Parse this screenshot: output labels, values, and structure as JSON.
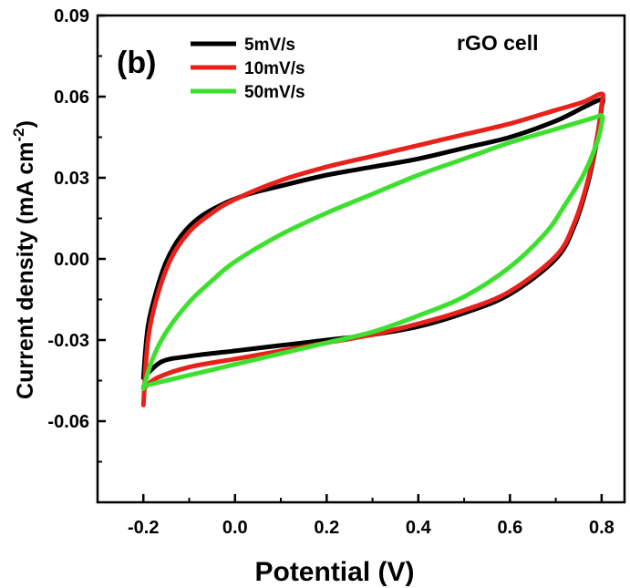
{
  "chart_data": {
    "type": "line",
    "title": "",
    "panel_label": "(b)",
    "annotation": "rGO cell",
    "xlabel": "Potential (V)",
    "ylabel_main": "Current density (mA cm",
    "ylabel_sup": "-2",
    "ylabel_close": ")",
    "xlim": [
      -0.3,
      0.85
    ],
    "ylim": [
      -0.09,
      0.09
    ],
    "x_ticks": [
      -0.2,
      0.0,
      0.2,
      0.4,
      0.6,
      0.8
    ],
    "x_tick_labels": [
      "-0.2",
      "0.0",
      "0.2",
      "0.4",
      "0.6",
      "0.8"
    ],
    "y_ticks": [
      -0.06,
      -0.03,
      0.0,
      0.03,
      0.06,
      0.09
    ],
    "y_tick_labels": [
      "-0.06",
      "-0.03",
      "0.00",
      "0.03",
      "0.06",
      "0.09"
    ],
    "grid": false,
    "legend_position": "top-left",
    "series": [
      {
        "name": "5mV/s",
        "color": "#000000",
        "x": [
          -0.2,
          -0.19,
          -0.17,
          -0.15,
          -0.12,
          -0.08,
          -0.03,
          0.03,
          0.1,
          0.2,
          0.3,
          0.4,
          0.5,
          0.6,
          0.7,
          0.76,
          0.8,
          0.8,
          0.79,
          0.77,
          0.74,
          0.7,
          0.6,
          0.5,
          0.4,
          0.3,
          0.2,
          0.1,
          0.0,
          -0.1,
          -0.16,
          -0.2
        ],
        "y": [
          -0.044,
          -0.025,
          -0.011,
          -0.001,
          0.008,
          0.015,
          0.02,
          0.024,
          0.027,
          0.031,
          0.034,
          0.037,
          0.041,
          0.045,
          0.051,
          0.056,
          0.059,
          0.056,
          0.044,
          0.028,
          0.012,
          0.0,
          -0.013,
          -0.02,
          -0.025,
          -0.028,
          -0.03,
          -0.032,
          -0.034,
          -0.036,
          -0.038,
          -0.044
        ]
      },
      {
        "name": "10mV/s",
        "color": "#e8211b",
        "x": [
          -0.2,
          -0.19,
          -0.17,
          -0.14,
          -0.1,
          -0.05,
          0.0,
          0.1,
          0.2,
          0.3,
          0.4,
          0.5,
          0.6,
          0.7,
          0.76,
          0.8,
          0.8,
          0.79,
          0.77,
          0.74,
          0.7,
          0.6,
          0.5,
          0.4,
          0.3,
          0.2,
          0.1,
          0.0,
          -0.1,
          -0.17,
          -0.2
        ],
        "y": [
          -0.054,
          -0.03,
          -0.014,
          0.0,
          0.01,
          0.017,
          0.022,
          0.029,
          0.034,
          0.038,
          0.042,
          0.046,
          0.05,
          0.055,
          0.058,
          0.061,
          0.057,
          0.045,
          0.029,
          0.013,
          0.001,
          -0.012,
          -0.019,
          -0.024,
          -0.028,
          -0.031,
          -0.034,
          -0.037,
          -0.04,
          -0.044,
          -0.048
        ]
      },
      {
        "name": "50mV/s",
        "color": "#3ee02f",
        "x": [
          -0.2,
          -0.18,
          -0.15,
          -0.1,
          -0.05,
          0.0,
          0.1,
          0.2,
          0.3,
          0.4,
          0.5,
          0.6,
          0.7,
          0.78,
          0.8,
          0.8,
          0.79,
          0.76,
          0.72,
          0.68,
          0.6,
          0.5,
          0.4,
          0.3,
          0.2,
          0.1,
          0.0,
          -0.1,
          -0.2
        ],
        "y": [
          -0.048,
          -0.037,
          -0.027,
          -0.016,
          -0.008,
          -0.001,
          0.009,
          0.017,
          0.024,
          0.031,
          0.037,
          0.043,
          0.048,
          0.052,
          0.053,
          0.05,
          0.043,
          0.031,
          0.02,
          0.01,
          -0.003,
          -0.014,
          -0.021,
          -0.027,
          -0.031,
          -0.035,
          -0.039,
          -0.043,
          -0.047
        ]
      }
    ]
  }
}
